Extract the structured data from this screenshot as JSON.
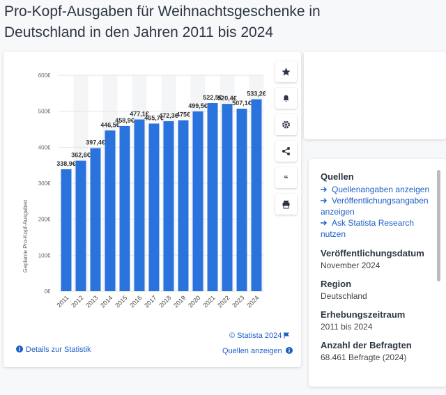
{
  "header": {
    "title": "Pro-Kopf-Ausgaben für Weihnachtsgeschenke in Deutschland in den Jahren 2011 bis 2024"
  },
  "chart_data": {
    "type": "bar",
    "y_label": "Geplante Pro-Kopf-Ausgaben",
    "categories": [
      "2011",
      "2012",
      "2013",
      "2014",
      "2015",
      "2016",
      "2017",
      "2018",
      "2019",
      "2020",
      "2021",
      "2022",
      "2023",
      "2024"
    ],
    "values": [
      338.9,
      362.6,
      397.4,
      446.5,
      458.9,
      477.1,
      465.7,
      472.3,
      475,
      499.5,
      522.5,
      520.4,
      507.1,
      533.2
    ],
    "value_labels": [
      "338,9€",
      "362,6€",
      "397,4€",
      "446,5€",
      "458,9€",
      "477,1€",
      "465,7€",
      "472,3€",
      "475€",
      "499,5€",
      "522,5€",
      "520,4€",
      "507,1€",
      "533,2€"
    ],
    "color": "#2a73dc",
    "ylim": [
      0,
      600
    ],
    "yticks": [
      {
        "value": 0,
        "label": "0€"
      },
      {
        "value": 100,
        "label": "100€"
      },
      {
        "value": 200,
        "label": "200€"
      },
      {
        "value": 300,
        "label": "300€"
      },
      {
        "value": 400,
        "label": "400€"
      },
      {
        "value": 500,
        "label": "500€"
      },
      {
        "value": 600,
        "label": "600€"
      }
    ],
    "grid": true
  },
  "chart_footer": {
    "copyright": "© Statista 2024",
    "details": "Details zur Statistik",
    "sources": "Quellen anzeigen"
  },
  "sidebar": {
    "sources_title": "Quellen",
    "links": [
      "Quellenangaben anzeigen",
      "Veröffentlichungsangaben anzeigen",
      "Ask Statista Research nutzen"
    ],
    "items": [
      {
        "label": "Veröffentlichungsdatum",
        "value": "November 2024"
      },
      {
        "label": "Region",
        "value": "Deutschland"
      },
      {
        "label": "Erhebungszeitraum",
        "value": "2011 bis 2024"
      },
      {
        "label": "Anzahl der Befragten",
        "value": "68.461 Befragte (2024)"
      }
    ]
  }
}
